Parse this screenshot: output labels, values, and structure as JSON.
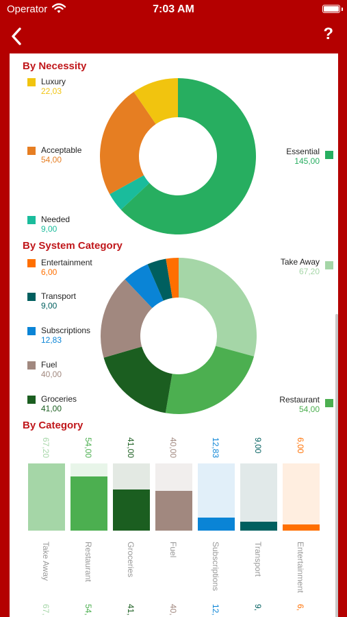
{
  "status": {
    "carrier": "Operator",
    "time": "7:03 AM"
  },
  "nav": {
    "back_icon": "chevron-left-icon",
    "help_label": "?"
  },
  "necessity": {
    "title": "By Necessity",
    "items": [
      {
        "name": "Luxury",
        "value": "22,03",
        "color": "#f1c40f"
      },
      {
        "name": "Acceptable",
        "value": "54,00",
        "color": "#e67e22"
      },
      {
        "name": "Needed",
        "value": "9,00",
        "color": "#1abc9c"
      },
      {
        "name": "Essential",
        "value": "145,00",
        "color": "#27ae60"
      }
    ]
  },
  "system": {
    "title": "By System Category",
    "items": [
      {
        "name": "Entertainment",
        "value": "6,00",
        "color": "#ff6f00"
      },
      {
        "name": "Transport",
        "value": "9,00",
        "color": "#005f5f"
      },
      {
        "name": "Subscriptions",
        "value": "12,83",
        "color": "#0a84d6"
      },
      {
        "name": "Fuel",
        "value": "40,00",
        "color": "#a1887f"
      },
      {
        "name": "Groceries",
        "value": "41,00",
        "color": "#1b5e20"
      },
      {
        "name": "Take Away",
        "value": "67,20",
        "color": "#a5d6a7"
      },
      {
        "name": "Restaurant",
        "value": "54,00",
        "color": "#4caf50"
      }
    ]
  },
  "category": {
    "title": "By Category",
    "bars": [
      {
        "name": "Take Away",
        "value": "67,20",
        "color": "#a5d6a7",
        "text_color": "#a5d6a7",
        "bg": "#e8f5e9"
      },
      {
        "name": "Restaurant",
        "value": "54,00",
        "color": "#4caf50",
        "text_color": "#4caf50",
        "bg": "#e8f5e9"
      },
      {
        "name": "Groceries",
        "value": "41,00",
        "color": "#1b5e20",
        "text_color": "#1b5e20",
        "bg": "#e3e9e3"
      },
      {
        "name": "Fuel",
        "value": "40,00",
        "color": "#a1887f",
        "text_color": "#a1887f",
        "bg": "#f1eeed"
      },
      {
        "name": "Subscriptions",
        "value": "12,83",
        "color": "#0a84d6",
        "text_color": "#0a84d6",
        "bg": "#e1eff9"
      },
      {
        "name": "Transport",
        "value": "9,00",
        "color": "#005f5f",
        "text_color": "#005f5f",
        "bg": "#e1e9e9"
      },
      {
        "name": "Entertainment",
        "value": "6,00",
        "color": "#ff6f00",
        "text_color": "#ff6f00",
        "bg": "#ffeee0"
      }
    ],
    "footer_values": [
      "67,",
      "54,",
      "41,",
      "40,",
      "12,",
      "9,",
      "6,"
    ]
  },
  "chart_data": [
    {
      "type": "pie",
      "title": "By Necessity",
      "categories": [
        "Luxury",
        "Acceptable",
        "Needed",
        "Essential"
      ],
      "values": [
        22.03,
        54.0,
        9.0,
        145.0
      ]
    },
    {
      "type": "pie",
      "title": "By System Category",
      "categories": [
        "Take Away",
        "Restaurant",
        "Groceries",
        "Fuel",
        "Subscriptions",
        "Transport",
        "Entertainment"
      ],
      "values": [
        67.2,
        54.0,
        41.0,
        40.0,
        12.83,
        9.0,
        6.0
      ]
    },
    {
      "type": "bar",
      "title": "By Category",
      "categories": [
        "Take Away",
        "Restaurant",
        "Groceries",
        "Fuel",
        "Subscriptions",
        "Transport",
        "Entertainment"
      ],
      "values": [
        67.2,
        54.0,
        41.0,
        40.0,
        12.83,
        9.0,
        6.0
      ],
      "ylim": [
        0,
        67.2
      ]
    }
  ]
}
